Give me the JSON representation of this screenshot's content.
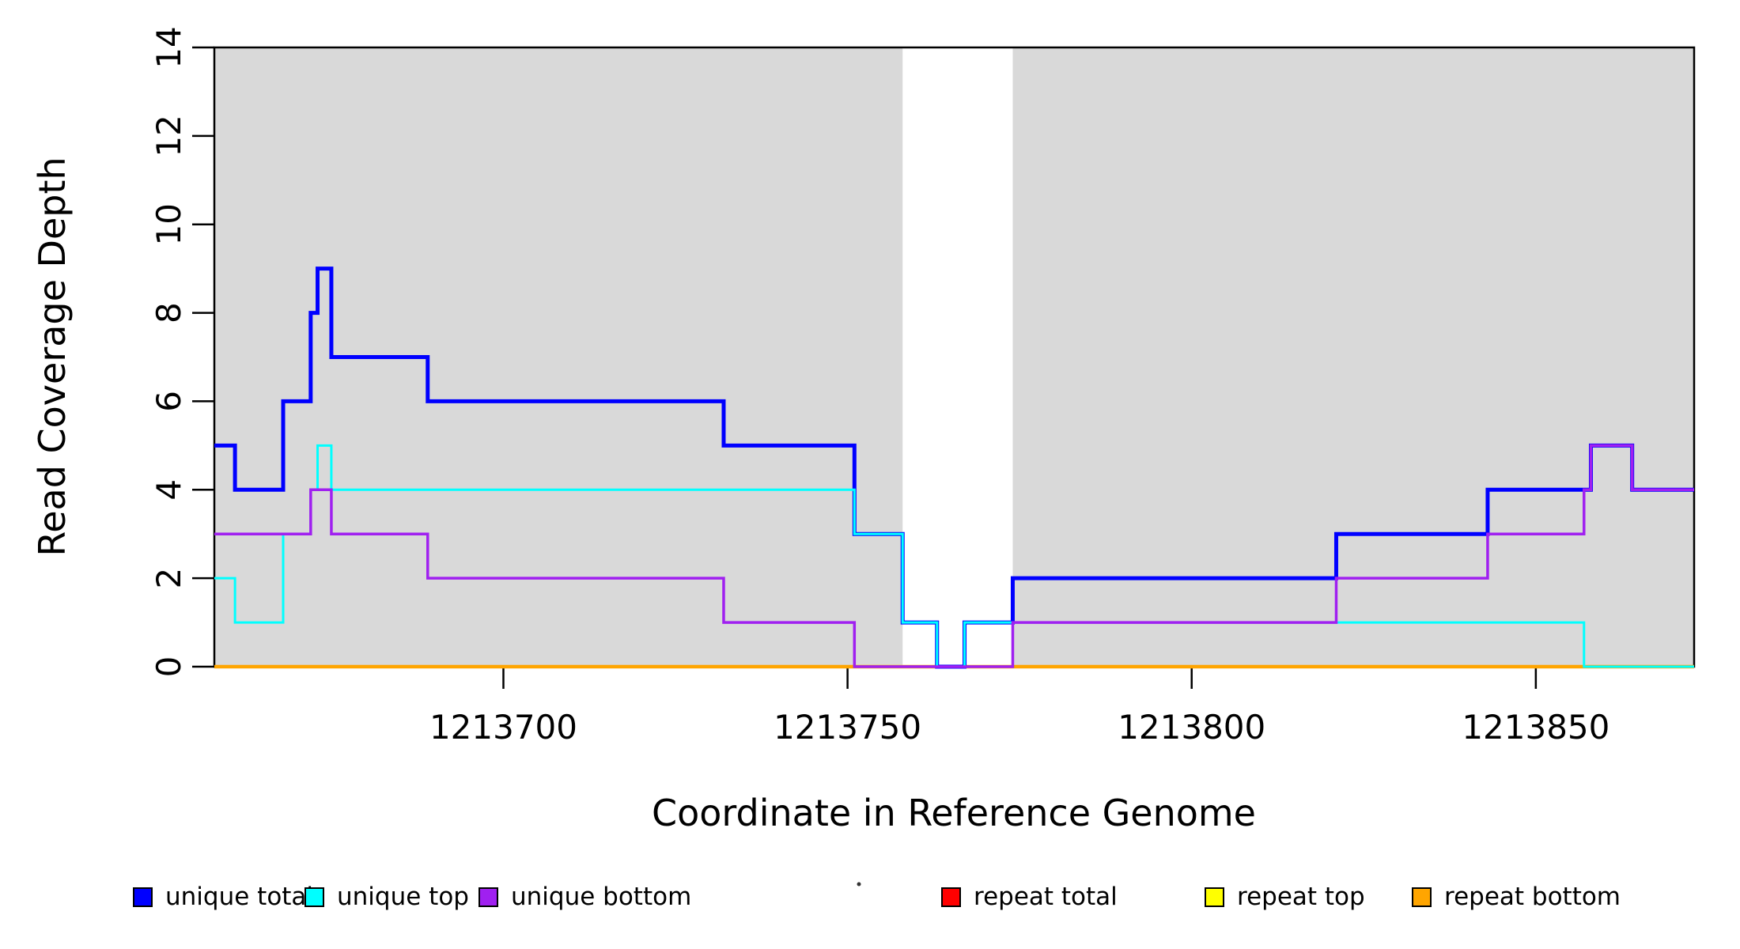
{
  "chart_data": {
    "type": "line",
    "subtype": "step",
    "title": "",
    "xlabel": "Coordinate in Reference Genome",
    "ylabel": "Read Coverage Depth",
    "xlim": [
      1213658,
      1213873
    ],
    "ylim": [
      0,
      14
    ],
    "x_ticks": [
      "1213700",
      "1213750",
      "1213800",
      "1213850"
    ],
    "y_ticks": [
      "0",
      "2",
      "4",
      "6",
      "8",
      "10",
      "12",
      "14"
    ],
    "grid": false,
    "plot_background": "#FFFFFF",
    "shaded_regions": [
      {
        "x0": 1213658,
        "x1": 1213758,
        "color": "#D9D9D9"
      },
      {
        "x0": 1213774,
        "x1": 1213873,
        "color": "#D9D9D9"
      }
    ],
    "series": [
      {
        "name": "unique total",
        "color": "#0000FF",
        "width": 5,
        "points": [
          [
            1213658,
            5
          ],
          [
            1213661,
            4
          ],
          [
            1213668,
            6
          ],
          [
            1213672,
            8
          ],
          [
            1213673,
            9
          ],
          [
            1213675,
            7
          ],
          [
            1213689,
            6
          ],
          [
            1213732,
            5
          ],
          [
            1213751,
            3
          ],
          [
            1213758,
            1
          ],
          [
            1213763,
            0
          ],
          [
            1213767,
            1
          ],
          [
            1213774,
            2
          ],
          [
            1213821,
            3
          ],
          [
            1213843,
            4
          ],
          [
            1213858,
            5
          ],
          [
            1213864,
            4
          ]
        ]
      },
      {
        "name": "unique top",
        "color": "#00FFFF",
        "width": 3,
        "points": [
          [
            1213658,
            2
          ],
          [
            1213661,
            1
          ],
          [
            1213668,
            3
          ],
          [
            1213672,
            4
          ],
          [
            1213673,
            5
          ],
          [
            1213675,
            4
          ],
          [
            1213751,
            3
          ],
          [
            1213758,
            1
          ],
          [
            1213763,
            0
          ],
          [
            1213767,
            1
          ],
          [
            1213857,
            0
          ]
        ]
      },
      {
        "name": "unique bottom",
        "color": "#A020F0",
        "width": 3.5,
        "points": [
          [
            1213658,
            3
          ],
          [
            1213672,
            4
          ],
          [
            1213675,
            3
          ],
          [
            1213689,
            2
          ],
          [
            1213732,
            1
          ],
          [
            1213751,
            0
          ],
          [
            1213774,
            1
          ],
          [
            1213821,
            2
          ],
          [
            1213843,
            3
          ],
          [
            1213857,
            4
          ],
          [
            1213858,
            5
          ],
          [
            1213864,
            4
          ]
        ]
      },
      {
        "name": "repeat total",
        "color": "#FF0000",
        "width": 3,
        "points": [
          [
            1213658,
            0
          ]
        ]
      },
      {
        "name": "repeat top",
        "color": "#FFFF00",
        "width": 3,
        "points": [
          [
            1213658,
            0
          ]
        ]
      },
      {
        "name": "repeat bottom",
        "color": "#FFA500",
        "width": 4.5,
        "points": [
          [
            1213658,
            0
          ]
        ]
      }
    ],
    "draw_order": [
      "repeat total",
      "repeat top",
      "repeat bottom",
      "unique total",
      "unique top",
      "unique bottom"
    ],
    "legend": {
      "position": "bottom",
      "items": [
        {
          "label": "unique total",
          "color": "#0000FF"
        },
        {
          "label": "unique top",
          "color": "#00FFFF"
        },
        {
          "label": "unique bottom",
          "color": "#A020F0"
        },
        {
          "label": "repeat total",
          "color": "#FF0000"
        },
        {
          "label": "repeat top",
          "color": "#FFFF00"
        },
        {
          "label": "repeat bottom",
          "color": "#FFA500"
        }
      ]
    }
  }
}
